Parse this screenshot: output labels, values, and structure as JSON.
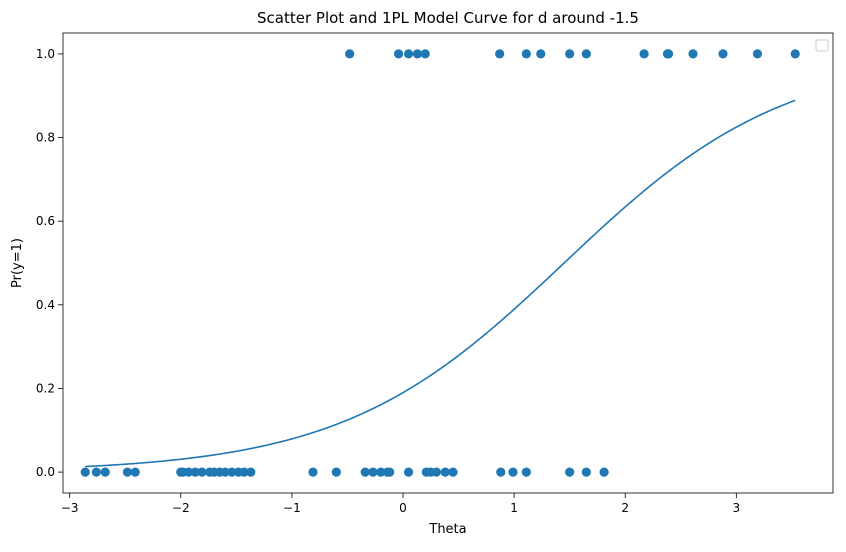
{
  "chart_data": {
    "type": "scatter",
    "title": "Scatter Plot and 1PL Model Curve for d around -1.5",
    "xlabel": "Theta",
    "ylabel": "Pr(y=1)",
    "xlim": [
      -3.06,
      3.87
    ],
    "ylim": [
      -0.05,
      1.05
    ],
    "xticks": [
      -3,
      -2,
      -1,
      0,
      1,
      2,
      3
    ],
    "yticks": [
      0.0,
      0.2,
      0.4,
      0.6,
      0.8,
      1.0
    ],
    "xtick_labels": [
      "−3",
      "−2",
      "−1",
      "0",
      "1",
      "2",
      "3"
    ],
    "ytick_labels": [
      "0.0",
      "0.2",
      "0.4",
      "0.6",
      "0.8",
      "1.0"
    ],
    "grid": false,
    "legend": {
      "placement": "upper right",
      "entries": []
    },
    "colors": {
      "points": "#1f77b4",
      "curve": "#1f77b4"
    },
    "series": [
      {
        "type": "scatter",
        "x": [
          -2.86,
          -2.76,
          -2.68,
          -2.48,
          -2.41,
          -2.0,
          -1.98,
          -1.93,
          -1.87,
          -1.81,
          -1.74,
          -1.7,
          -1.65,
          -1.6,
          -1.54,
          -1.48,
          -1.43,
          -1.37,
          -0.81,
          -0.6,
          -0.34,
          -0.27,
          -0.2,
          -0.14,
          -0.12,
          0.05,
          0.21,
          0.25,
          0.3,
          0.38,
          0.45,
          0.88,
          0.99,
          1.11,
          1.5,
          1.65,
          1.81,
          -0.48,
          -0.04,
          0.05,
          0.13,
          0.2,
          0.87,
          1.11,
          1.24,
          1.5,
          1.65,
          2.17,
          2.38,
          2.39,
          2.61,
          2.88,
          3.19,
          3.53
        ],
        "y": [
          0,
          0,
          0,
          0,
          0,
          0,
          0,
          0,
          0,
          0,
          0,
          0,
          0,
          0,
          0,
          0,
          0,
          0,
          0,
          0,
          0,
          0,
          0,
          0,
          0,
          0,
          0,
          0,
          0,
          0,
          0,
          0,
          0,
          0,
          0,
          0,
          0,
          1,
          1,
          1,
          1,
          1,
          1,
          1,
          1,
          1,
          1,
          1,
          1,
          1,
          1,
          1,
          1,
          1
        ]
      },
      {
        "type": "line",
        "model": "1PL logistic",
        "difficulty": 1.45,
        "x_range": [
          -2.86,
          3.53
        ]
      }
    ]
  }
}
